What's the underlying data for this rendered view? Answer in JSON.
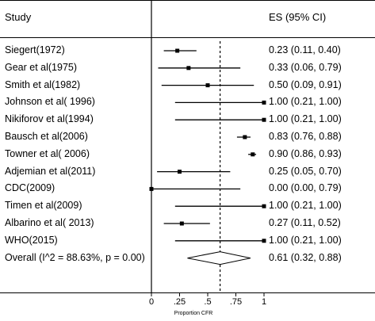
{
  "chart_data": {
    "type": "forest",
    "header": {
      "study": "Study",
      "es": "ES (95% CI)"
    },
    "xlabel": "Proportion CFR",
    "xlim": [
      0,
      1
    ],
    "ticks": [
      {
        "value": 0,
        "label": "0"
      },
      {
        "value": 0.25,
        "label": ".25"
      },
      {
        "value": 0.5,
        "label": ".5"
      },
      {
        "value": 0.75,
        "label": ".75"
      },
      {
        "value": 1,
        "label": "1"
      }
    ],
    "pooled_line": 0.61,
    "studies": [
      {
        "name": "Siegert(1972)",
        "es": 0.23,
        "lo": 0.11,
        "hi": 0.4,
        "label": "0.23 (0.11, 0.40)"
      },
      {
        "name": "Gear et al(1975)",
        "es": 0.33,
        "lo": 0.06,
        "hi": 0.79,
        "label": "0.33 (0.06, 0.79)"
      },
      {
        "name": "Smith et al(1982)",
        "es": 0.5,
        "lo": 0.09,
        "hi": 0.91,
        "label": "0.50 (0.09, 0.91)"
      },
      {
        "name": "Johnson et al( 1996)",
        "es": 1.0,
        "lo": 0.21,
        "hi": 1.0,
        "label": "1.00 (0.21, 1.00)"
      },
      {
        "name": "Nikiforov et al(1994)",
        "es": 1.0,
        "lo": 0.21,
        "hi": 1.0,
        "label": "1.00 (0.21, 1.00)"
      },
      {
        "name": "Bausch et al(2006)",
        "es": 0.83,
        "lo": 0.76,
        "hi": 0.88,
        "label": "0.83 (0.76, 0.88)"
      },
      {
        "name": "Towner et al( 2006)",
        "es": 0.9,
        "lo": 0.86,
        "hi": 0.93,
        "label": "0.90 (0.86, 0.93)"
      },
      {
        "name": "Adjemian et al(2011)",
        "es": 0.25,
        "lo": 0.05,
        "hi": 0.7,
        "label": "0.25 (0.05, 0.70)"
      },
      {
        "name": "CDC(2009)",
        "es": 0.0,
        "lo": 0.0,
        "hi": 0.79,
        "label": "0.00 (0.00, 0.79)"
      },
      {
        "name": "Timen et al(2009)",
        "es": 1.0,
        "lo": 0.21,
        "hi": 1.0,
        "label": "1.00 (0.21, 1.00)"
      },
      {
        "name": "Albarino et al( 2013)",
        "es": 0.27,
        "lo": 0.11,
        "hi": 0.52,
        "label": "0.27 (0.11, 0.52)"
      },
      {
        "name": "WHO(2015)",
        "es": 1.0,
        "lo": 0.21,
        "hi": 1.0,
        "label": "1.00 (0.21, 1.00)"
      }
    ],
    "overall": {
      "name": "Overall  (I^2 = 88.63%, p = 0.00)",
      "es": 0.61,
      "lo": 0.32,
      "hi": 0.88,
      "label": "0.61 (0.32, 0.88)"
    }
  }
}
